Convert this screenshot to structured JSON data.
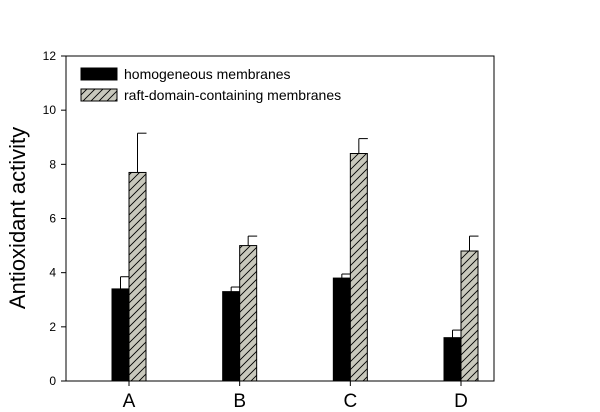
{
  "chart_data": {
    "type": "bar",
    "title": "",
    "xlabel": "",
    "ylabel": "Antioxidant activity",
    "categories": [
      "A",
      "B",
      "C",
      "D"
    ],
    "ylim": [
      0,
      12
    ],
    "yticks": [
      0,
      2,
      4,
      6,
      8,
      10,
      12
    ],
    "series": [
      {
        "name": "homogeneous membranes",
        "values": [
          3.4,
          3.3,
          3.8,
          1.6
        ],
        "errors": [
          0.45,
          0.17,
          0.15,
          0.28
        ],
        "fill": "#000000",
        "pattern": "solid"
      },
      {
        "name": "raft-domain-containing membranes",
        "values": [
          7.7,
          5.0,
          8.4,
          4.8
        ],
        "errors": [
          1.45,
          0.35,
          0.55,
          0.55
        ],
        "fill": "#c8c8bc",
        "pattern": "diagonal-hatch"
      }
    ],
    "legend_position": "top-left",
    "grid": false
  }
}
